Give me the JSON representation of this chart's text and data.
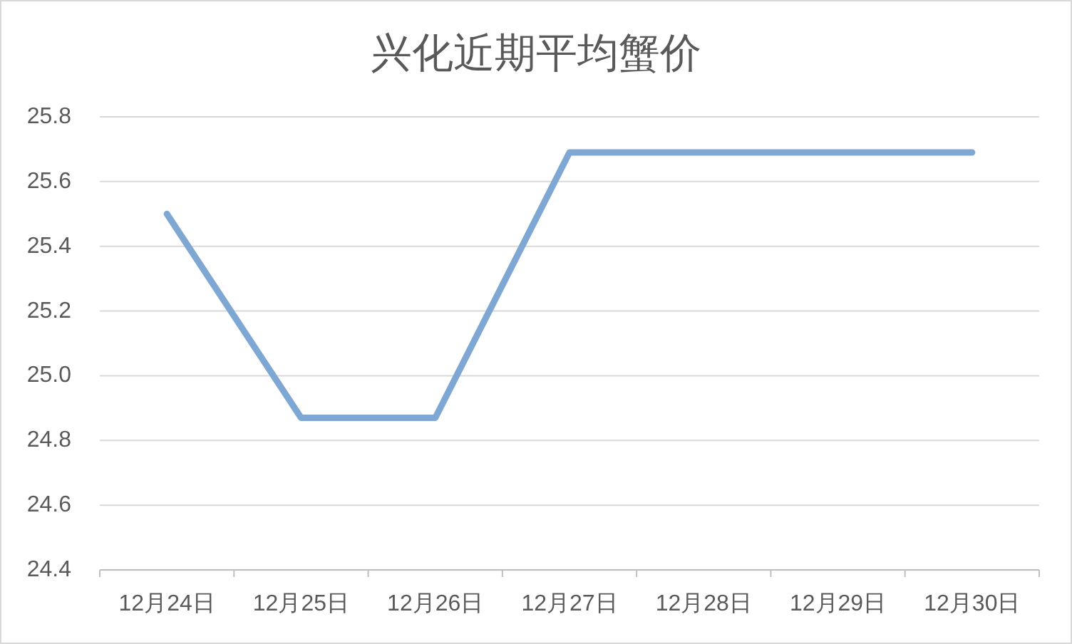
{
  "chart_data": {
    "type": "line",
    "title": "兴化近期平均蟹价",
    "categories": [
      "12月24日",
      "12月25日",
      "12月26日",
      "12月27日",
      "12月28日",
      "12月29日",
      "12月30日"
    ],
    "series": [
      {
        "color": "#7ea8d3",
        "values": [
          25.5,
          24.87,
          24.87,
          25.69,
          25.69,
          25.69,
          25.69
        ]
      }
    ],
    "ylim": [
      24.4,
      25.8
    ],
    "yticks": [
      24.4,
      24.6,
      24.8,
      {
        "value": 25,
        "label": "25.0"
      },
      25.2,
      25.4,
      25.6,
      25.8
    ],
    "grid": "y",
    "line_style": "solid"
  }
}
